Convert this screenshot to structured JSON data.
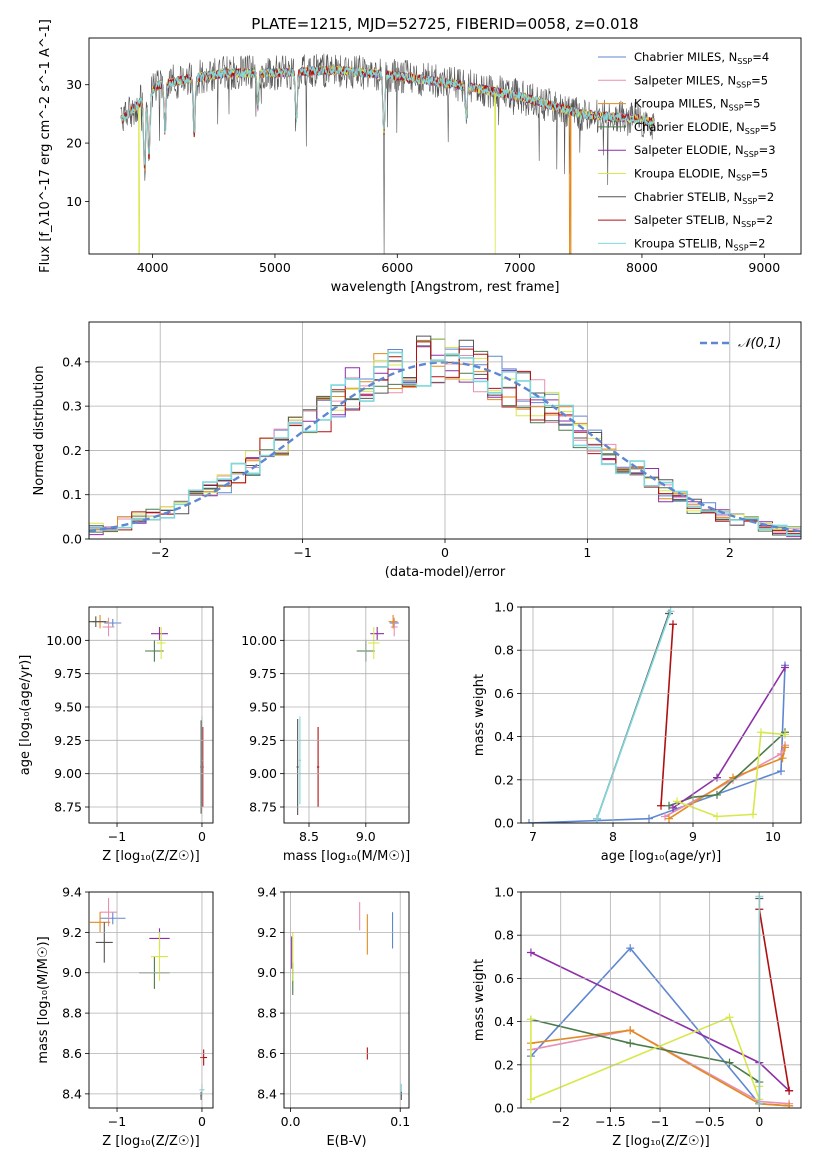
{
  "colors": {
    "grid": "#b0b0b0",
    "normal_curve": "#5f87d1"
  },
  "series": [
    {
      "name": "Chabrier MILES, N$_{SSP}$=4",
      "label": "Chabrier MILES, N",
      "n": "4",
      "color": "#5f87d1"
    },
    {
      "name": "Salpeter MILES, N$_{SSP}$=5",
      "label": "Salpeter MILES, N",
      "n": "5",
      "color": "#e88fb4"
    },
    {
      "name": "Kroupa MILES, N$_{SSP}$=5",
      "label": "Kroupa MILES, N",
      "n": "5",
      "color": "#e38a1e"
    },
    {
      "name": "Chabrier ELODIE, N$_{SSP}$=5",
      "label": "Chabrier ELODIE, N",
      "n": "5",
      "color": "#4a7a4a"
    },
    {
      "name": "Salpeter ELODIE, N$_{SSP}$=3",
      "label": "Salpeter ELODIE, N",
      "n": "3",
      "color": "#8e2fa8"
    },
    {
      "name": "Kroupa ELODIE, N$_{SSP}$=5",
      "label": "Kroupa ELODIE, N",
      "n": "5",
      "color": "#d8e84a"
    },
    {
      "name": "Chabrier STELIB, N$_{SSP}$=2",
      "label": "Chabrier STELIB, N",
      "n": "2",
      "color": "#555555"
    },
    {
      "name": "Salpeter STELIB, N$_{SSP}$=2",
      "label": "Salpeter STELIB, N",
      "n": "2",
      "color": "#b01010"
    },
    {
      "name": "Kroupa STELIB, N$_{SSP}$=2",
      "label": "Kroupa STELIB, N",
      "n": "2",
      "color": "#7fd8dc"
    }
  ],
  "chart_data": [
    {
      "id": "spectrum",
      "type": "line",
      "title": "PLATE=1215, MJD=52725, FIBERID=0058, z=0.018",
      "xlabel": "wavelength [Angstrom, rest frame]",
      "ylabel": "Flux [f_λ10^-17 erg cm^-2 s^-1 A^-1]",
      "xlim": [
        3480,
        9300
      ],
      "ylim": [
        1,
        38
      ],
      "xticks": [
        4000,
        5000,
        6000,
        7000,
        8000,
        9000
      ],
      "yticks": [
        10,
        20,
        30
      ],
      "grid": false,
      "legend": "top-right",
      "continuum": [
        [
          3750,
          24
        ],
        [
          3900,
          27
        ],
        [
          4050,
          30
        ],
        [
          4300,
          31
        ],
        [
          4600,
          32
        ],
        [
          5000,
          32
        ],
        [
          5500,
          32.5
        ],
        [
          6000,
          31.5
        ],
        [
          6500,
          30
        ],
        [
          7000,
          28
        ],
        [
          7500,
          25
        ],
        [
          8000,
          24
        ],
        [
          8100,
          23.5
        ]
      ],
      "absorption": [
        {
          "x": 3935,
          "depth": 12,
          "min": 13
        },
        {
          "x": 3970,
          "depth": 11,
          "min": 15
        },
        {
          "x": 4101,
          "depth": 8
        },
        {
          "x": 4340,
          "depth": 10
        },
        {
          "x": 4861,
          "depth": 6
        },
        {
          "x": 5175,
          "depth": 8
        },
        {
          "x": 5890,
          "depth": 10
        },
        {
          "x": 6563,
          "depth": 5
        }
      ],
      "model_drops": [
        {
          "name": "Kroupa ELODIE",
          "x": 3890,
          "to": 1
        },
        {
          "name": "Chabrier STELIB",
          "x": 5892,
          "to": 1
        },
        {
          "name": "Kroupa ELODIE",
          "x": 6800,
          "to": 1
        },
        {
          "name": "Kroupa MILES",
          "x": 7410,
          "to": 1
        }
      ],
      "model_end": 8100
    },
    {
      "id": "residuals",
      "type": "step",
      "xlabel": "(data-model)/error",
      "ylabel": "Normed distribution",
      "xlim": [
        -2.5,
        2.5
      ],
      "ylim": [
        0,
        0.49
      ],
      "xticks": [
        -2,
        -1,
        0,
        1,
        2
      ],
      "yticks": [
        0.0,
        0.1,
        0.2,
        0.3,
        0.4
      ],
      "grid": true,
      "legend": "top-right",
      "legend_label": "𝒩(0,1)",
      "bin_width": 0.1,
      "sigma": 1.0
    },
    {
      "id": "age_vs_Z",
      "type": "errorbar",
      "xlabel": "Z [log₁₀(Z/Z☉)]",
      "ylabel": "age  [log₁₀(age/yr)]",
      "xlim": [
        -1.33,
        0.13
      ],
      "ylim": [
        8.63,
        10.25
      ],
      "xticks": [
        -1,
        0
      ],
      "yticks": [
        8.75,
        9.0,
        9.25,
        9.5,
        9.75,
        10.0
      ],
      "grid": true,
      "points": [
        {
          "s": 0,
          "x": -1.05,
          "y": 10.13,
          "xerr": 0.1,
          "yerr": 0.03
        },
        {
          "s": 1,
          "x": -1.1,
          "y": 10.1,
          "xerr": 0.07,
          "yerr": 0.07
        },
        {
          "s": 2,
          "x": -1.2,
          "y": 10.14,
          "xerr": 0.1,
          "yerr": 0.05
        },
        {
          "s": 3,
          "x": -0.56,
          "y": 9.92,
          "xerr": 0.11,
          "yerr": 0.08
        },
        {
          "s": 4,
          "x": -0.5,
          "y": 10.05,
          "xerr": 0.1,
          "yerr": 0.05
        },
        {
          "s": 5,
          "x": -0.48,
          "y": 9.98,
          "xerr": 0.05,
          "yerr": 0.12
        },
        {
          "s": 6,
          "x": -1.25,
          "y": 10.14,
          "xerr": 0.12,
          "yerr": 0.04
        },
        {
          "s": 7,
          "x": 0.01,
          "y": 9.05,
          "xerr": 0.01,
          "yerr": 0.3
        },
        {
          "s": 8,
          "x": 0.0,
          "y": 9.1,
          "xerr": 0.01,
          "yerr": 0.33
        },
        {
          "s": 6,
          "x": -0.01,
          "y": 9.05,
          "xerr": 0.01,
          "yerr": 0.35
        }
      ]
    },
    {
      "id": "age_vs_mass",
      "type": "errorbar",
      "xlabel": "mass [log₁₀(M/M☉)]",
      "ylabel": "",
      "xlim": [
        8.28,
        9.38
      ],
      "ylim": [
        8.63,
        10.25
      ],
      "xticks": [
        8.5,
        9.0
      ],
      "yticks": [
        8.75,
        9.0,
        9.25,
        9.5,
        9.75,
        10.0
      ],
      "grid": true,
      "points": [
        {
          "s": 0,
          "x": 9.25,
          "y": 10.13,
          "xerr": 0.04,
          "yerr": 0.03
        },
        {
          "s": 1,
          "x": 9.25,
          "y": 10.1,
          "xerr": 0.03,
          "yerr": 0.07
        },
        {
          "s": 2,
          "x": 9.24,
          "y": 10.14,
          "xerr": 0.04,
          "yerr": 0.05
        },
        {
          "s": 3,
          "x": 9.0,
          "y": 9.92,
          "xerr": 0.08,
          "yerr": 0.08
        },
        {
          "s": 4,
          "x": 9.1,
          "y": 10.05,
          "xerr": 0.06,
          "yerr": 0.05
        },
        {
          "s": 5,
          "x": 9.07,
          "y": 9.98,
          "xerr": 0.05,
          "yerr": 0.12
        },
        {
          "s": 7,
          "x": 8.58,
          "y": 9.05,
          "xerr": 0.01,
          "yerr": 0.3
        },
        {
          "s": 8,
          "x": 8.42,
          "y": 9.1,
          "xerr": 0.01,
          "yerr": 0.33
        },
        {
          "s": 6,
          "x": 8.4,
          "y": 9.05,
          "xerr": 0.01,
          "yerr": 0.36
        }
      ]
    },
    {
      "id": "massweight_vs_age",
      "type": "line",
      "xlabel": "age  [log₁₀(age/yr)]",
      "ylabel": "mass weight",
      "xlim": [
        6.85,
        10.35
      ],
      "ylim": [
        0,
        1.0
      ],
      "xticks": [
        7,
        8,
        9,
        10
      ],
      "yticks": [
        0.0,
        0.2,
        0.4,
        0.6,
        0.8,
        1.0
      ],
      "grid": true,
      "lines": [
        {
          "s": 0,
          "x": [
            6.95,
            8.45,
            10.1,
            10.15
          ],
          "y": [
            0.0,
            0.02,
            0.24,
            0.73
          ]
        },
        {
          "s": 1,
          "x": [
            8.65,
            9.5,
            10.1,
            10.15
          ],
          "y": [
            0.03,
            0.2,
            0.32,
            0.36
          ]
        },
        {
          "s": 2,
          "x": [
            8.7,
            9.5,
            10.12,
            10.15
          ],
          "y": [
            0.02,
            0.21,
            0.3,
            0.35
          ]
        },
        {
          "s": 3,
          "x": [
            8.7,
            9.0,
            9.3,
            10.15
          ],
          "y": [
            0.08,
            0.12,
            0.13,
            0.42
          ]
        },
        {
          "s": 4,
          "x": [
            8.75,
            9.3,
            10.15
          ],
          "y": [
            0.07,
            0.21,
            0.72
          ]
        },
        {
          "s": 5,
          "x": [
            8.8,
            9.3,
            9.75,
            9.85,
            10.15
          ],
          "y": [
            0.1,
            0.03,
            0.04,
            0.42,
            0.41
          ]
        },
        {
          "s": 6,
          "x": [
            7.8,
            8.7
          ],
          "y": [
            0.02,
            0.97
          ]
        },
        {
          "s": 7,
          "x": [
            8.6,
            8.75
          ],
          "y": [
            0.08,
            0.92
          ]
        },
        {
          "s": 8,
          "x": [
            7.8,
            8.72
          ],
          "y": [
            0.02,
            0.98
          ]
        }
      ]
    },
    {
      "id": "mass_vs_Z",
      "type": "errorbar",
      "xlabel": "Z [log₁₀(Z/Z☉)]",
      "ylabel": "mass [log₁₀(M/M☉)]",
      "xlim": [
        -1.33,
        0.13
      ],
      "ylim": [
        8.33,
        9.4
      ],
      "xticks": [
        -1,
        0
      ],
      "yticks": [
        8.4,
        8.6,
        8.8,
        9.0,
        9.2,
        9.4
      ],
      "grid": true,
      "points": [
        {
          "s": 0,
          "x": -1.05,
          "y": 9.27,
          "xerr": 0.15,
          "yerr": 0.03
        },
        {
          "s": 1,
          "x": -1.1,
          "y": 9.3,
          "xerr": 0.1,
          "yerr": 0.07
        },
        {
          "s": 2,
          "x": -1.2,
          "y": 9.25,
          "xerr": 0.12,
          "yerr": 0.05
        },
        {
          "s": 3,
          "x": -0.56,
          "y": 9.0,
          "xerr": 0.18,
          "yerr": 0.08
        },
        {
          "s": 4,
          "x": -0.5,
          "y": 9.17,
          "xerr": 0.12,
          "yerr": 0.05
        },
        {
          "s": 5,
          "x": -0.5,
          "y": 9.08,
          "xerr": 0.1,
          "yerr": 0.12
        },
        {
          "s": 6,
          "x": -1.15,
          "y": 9.15,
          "xerr": 0.1,
          "yerr": 0.1
        },
        {
          "s": 7,
          "x": 0.02,
          "y": 8.58,
          "xerr": 0.04,
          "yerr": 0.04
        },
        {
          "s": 8,
          "x": 0.0,
          "y": 8.42,
          "xerr": 0.03,
          "yerr": 0.03
        },
        {
          "s": 6,
          "x": -0.01,
          "y": 8.39,
          "xerr": 0.01,
          "yerr": 0.02
        }
      ]
    },
    {
      "id": "mass_vs_ebv",
      "type": "errorbar",
      "xlabel": "E(B-V)",
      "ylabel": "",
      "xlim": [
        -0.006,
        0.108
      ],
      "ylim": [
        8.33,
        9.4
      ],
      "xticks": [
        0.0,
        0.1
      ],
      "yticks": [
        8.4,
        8.6,
        8.8,
        9.0,
        9.2,
        9.4
      ],
      "grid": true,
      "points": [
        {
          "s": 0,
          "x": 0.093,
          "y": 9.21,
          "xerr": 0,
          "yerr": 0.09
        },
        {
          "s": 1,
          "x": 0.063,
          "y": 9.28,
          "xerr": 0,
          "yerr": 0.07
        },
        {
          "s": 2,
          "x": 0.07,
          "y": 9.19,
          "xerr": 0,
          "yerr": 0.1
        },
        {
          "s": 3,
          "x": 0.002,
          "y": 8.97,
          "xerr": 0,
          "yerr": 0.08
        },
        {
          "s": 4,
          "x": 0.001,
          "y": 9.1,
          "xerr": 0,
          "yerr": 0.08
        },
        {
          "s": 5,
          "x": 0.002,
          "y": 9.08,
          "xerr": 0,
          "yerr": 0.12
        },
        {
          "s": 7,
          "x": 0.07,
          "y": 8.6,
          "xerr": 0,
          "yerr": 0.03
        },
        {
          "s": 8,
          "x": 0.101,
          "y": 8.42,
          "xerr": 0,
          "yerr": 0.03
        },
        {
          "s": 6,
          "x": 0.101,
          "y": 8.39,
          "xerr": 0,
          "yerr": 0.02
        }
      ]
    },
    {
      "id": "massweight_vs_Z",
      "type": "line",
      "xlabel": "Z [log₁₀(Z/Z☉)]",
      "ylabel": "mass weight",
      "xlim": [
        -2.4,
        0.42
      ],
      "ylim": [
        0,
        1.0
      ],
      "xticks": [
        -2.0,
        -1.5,
        -1.0,
        -0.5,
        0.0
      ],
      "yticks": [
        0.0,
        0.2,
        0.4,
        0.6,
        0.8,
        1.0
      ],
      "grid": true,
      "lines": [
        {
          "s": 0,
          "x": [
            -2.3,
            -1.3,
            0.0,
            0.3
          ],
          "y": [
            0.24,
            0.74,
            0.02,
            0.01
          ]
        },
        {
          "s": 1,
          "x": [
            -2.3,
            -1.3,
            0.0,
            0.3
          ],
          "y": [
            0.27,
            0.36,
            0.03,
            0.02
          ]
        },
        {
          "s": 2,
          "x": [
            -2.3,
            -1.3,
            0.0,
            0.3
          ],
          "y": [
            0.3,
            0.36,
            0.02,
            0.01
          ]
        },
        {
          "s": 3,
          "x": [
            -2.3,
            -1.3,
            -0.3,
            0.0
          ],
          "y": [
            0.41,
            0.3,
            0.21,
            0.12
          ]
        },
        {
          "s": 4,
          "x": [
            -2.3,
            0.0,
            0.3
          ],
          "y": [
            0.72,
            0.21,
            0.08
          ]
        },
        {
          "s": 5,
          "x": [
            -2.3,
            -2.3,
            -0.3,
            0.0,
            0.0
          ],
          "y": [
            0.41,
            0.04,
            0.42,
            0.04,
            0.1
          ]
        },
        {
          "s": 6,
          "x": [
            0.0,
            0.0
          ],
          "y": [
            0.02,
            0.97
          ]
        },
        {
          "s": 7,
          "x": [
            0.0,
            0.3
          ],
          "y": [
            0.92,
            0.08
          ]
        },
        {
          "s": 8,
          "x": [
            0.0,
            0.0
          ],
          "y": [
            0.02,
            0.98
          ]
        }
      ]
    }
  ]
}
